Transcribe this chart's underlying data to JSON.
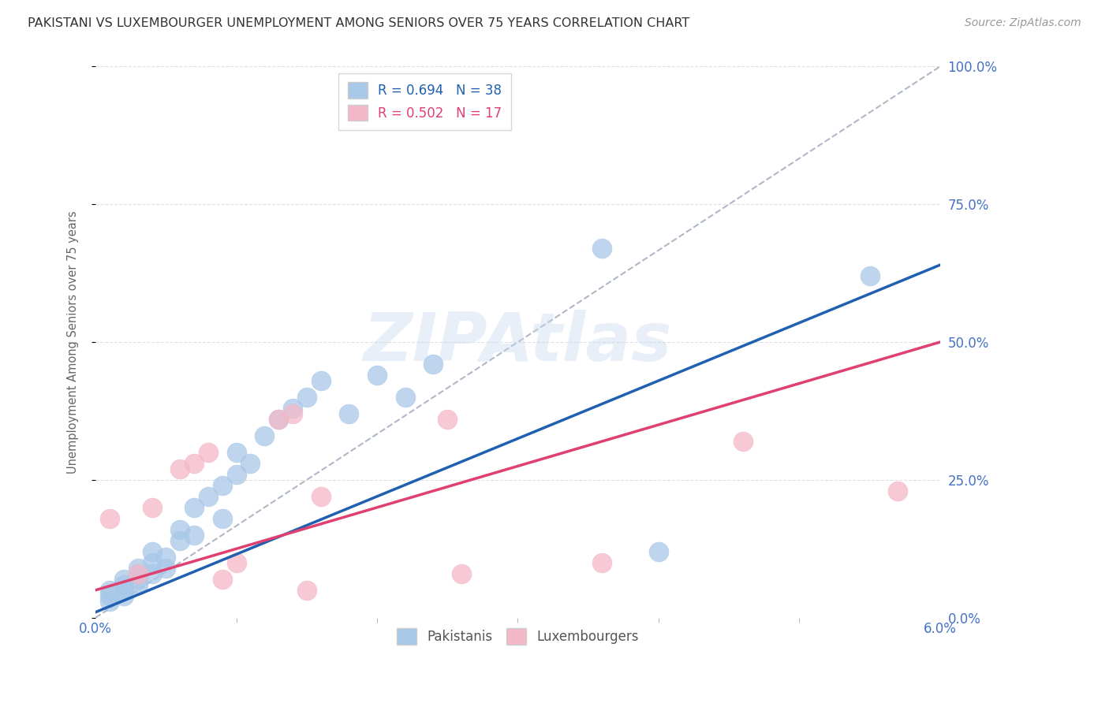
{
  "title": "PAKISTANI VS LUXEMBOURGER UNEMPLOYMENT AMONG SENIORS OVER 75 YEARS CORRELATION CHART",
  "source": "Source: ZipAtlas.com",
  "ylabel": "Unemployment Among Seniors over 75 years",
  "xmin": 0.0,
  "xmax": 0.06,
  "ymin": 0.0,
  "ymax": 1.0,
  "yticks": [
    0.0,
    0.25,
    0.5,
    0.75,
    1.0
  ],
  "ytick_labels": [
    "0.0%",
    "25.0%",
    "50.0%",
    "75.0%",
    "100.0%"
  ],
  "xticks_show": [
    0.0,
    0.06
  ],
  "xtick_labels_show": [
    "0.0%",
    "6.0%"
  ],
  "xticks_minor": [
    0.01,
    0.02,
    0.03,
    0.04,
    0.05
  ],
  "legend_r1": "R = 0.694",
  "legend_n1": "N = 38",
  "legend_r2": "R = 0.502",
  "legend_n2": "N = 17",
  "blue_color": "#a8c8e8",
  "pink_color": "#f4b8c8",
  "line_blue": "#2060b0",
  "line_pink": "#e04070",
  "watermark": "ZIPAtlas",
  "pakistanis_x": [
    0.001,
    0.001,
    0.001,
    0.002,
    0.002,
    0.002,
    0.002,
    0.003,
    0.003,
    0.003,
    0.003,
    0.004,
    0.004,
    0.004,
    0.005,
    0.005,
    0.006,
    0.006,
    0.007,
    0.007,
    0.008,
    0.009,
    0.009,
    0.01,
    0.01,
    0.011,
    0.012,
    0.013,
    0.014,
    0.015,
    0.016,
    0.018,
    0.02,
    0.022,
    0.024,
    0.036,
    0.04,
    0.055
  ],
  "pakistanis_y": [
    0.04,
    0.05,
    0.03,
    0.06,
    0.05,
    0.07,
    0.04,
    0.08,
    0.07,
    0.06,
    0.09,
    0.1,
    0.08,
    0.12,
    0.11,
    0.09,
    0.14,
    0.16,
    0.15,
    0.2,
    0.22,
    0.18,
    0.24,
    0.3,
    0.26,
    0.28,
    0.33,
    0.36,
    0.38,
    0.4,
    0.43,
    0.37,
    0.44,
    0.4,
    0.46,
    0.67,
    0.12,
    0.62
  ],
  "luxembourgers_x": [
    0.001,
    0.003,
    0.004,
    0.006,
    0.007,
    0.008,
    0.009,
    0.01,
    0.013,
    0.014,
    0.015,
    0.016,
    0.025,
    0.026,
    0.036,
    0.046,
    0.057
  ],
  "luxembourgers_y": [
    0.18,
    0.08,
    0.2,
    0.27,
    0.28,
    0.3,
    0.07,
    0.1,
    0.36,
    0.37,
    0.05,
    0.22,
    0.36,
    0.08,
    0.1,
    0.32,
    0.23
  ],
  "background_color": "#ffffff",
  "grid_color": "#e0e0e0",
  "title_color": "#333333",
  "axis_color": "#4472c4",
  "right_axis_color": "#4472c4"
}
